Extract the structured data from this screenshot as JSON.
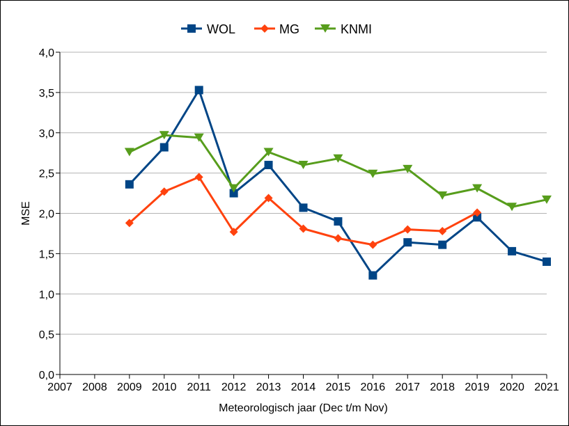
{
  "chart_data": {
    "type": "line",
    "title": "",
    "xlabel": "Meteorologisch jaar (Dec t/m Nov)",
    "ylabel": "MSE",
    "x": [
      2007,
      2008,
      2009,
      2010,
      2011,
      2012,
      2013,
      2014,
      2015,
      2016,
      2017,
      2018,
      2019,
      2020,
      2021
    ],
    "xlim": [
      2007,
      2021
    ],
    "ylim": [
      0,
      4
    ],
    "x_tick_labels": [
      "2007",
      "2008",
      "2009",
      "2010",
      "2011",
      "2012",
      "2013",
      "2014",
      "2015",
      "2016",
      "2017",
      "2018",
      "2019",
      "2020",
      "2021"
    ],
    "y_ticks": [
      0,
      0.5,
      1,
      1.5,
      2,
      2.5,
      3,
      3.5,
      4
    ],
    "y_tick_labels": [
      "0,0",
      "0,5",
      "1,0",
      "1,5",
      "2,0",
      "2,5",
      "3,0",
      "3,5",
      "4,0"
    ],
    "grid": "horizontal",
    "legend_position": "top-center",
    "series": [
      {
        "name": "WOL",
        "color": "#004586",
        "marker": "square",
        "points": [
          [
            2009,
            2.36
          ],
          [
            2010,
            2.82
          ],
          [
            2011,
            3.53
          ],
          [
            2012,
            2.25
          ],
          [
            2013,
            2.6
          ],
          [
            2014,
            2.07
          ],
          [
            2015,
            1.9
          ],
          [
            2016,
            1.23
          ],
          [
            2017,
            1.64
          ],
          [
            2018,
            1.61
          ],
          [
            2019,
            1.95
          ],
          [
            2020,
            1.53
          ],
          [
            2021,
            1.4
          ]
        ]
      },
      {
        "name": "MG",
        "color": "#ff420e",
        "marker": "diamond",
        "points": [
          [
            2009,
            1.88
          ],
          [
            2010,
            2.27
          ],
          [
            2011,
            2.45
          ],
          [
            2012,
            1.77
          ],
          [
            2013,
            2.19
          ],
          [
            2014,
            1.81
          ],
          [
            2015,
            1.69
          ],
          [
            2016,
            1.61
          ],
          [
            2017,
            1.8
          ],
          [
            2018,
            1.78
          ],
          [
            2019,
            2.01
          ]
        ]
      },
      {
        "name": "KNMI",
        "color": "#579d1c",
        "marker": "triangle-down",
        "points": [
          [
            2009,
            2.76
          ],
          [
            2010,
            2.97
          ],
          [
            2011,
            2.94
          ],
          [
            2012,
            2.31
          ],
          [
            2013,
            2.76
          ],
          [
            2014,
            2.6
          ],
          [
            2015,
            2.68
          ],
          [
            2016,
            2.49
          ],
          [
            2017,
            2.55
          ],
          [
            2018,
            2.22
          ],
          [
            2019,
            2.31
          ],
          [
            2020,
            2.08
          ],
          [
            2021,
            2.17
          ]
        ]
      }
    ]
  }
}
